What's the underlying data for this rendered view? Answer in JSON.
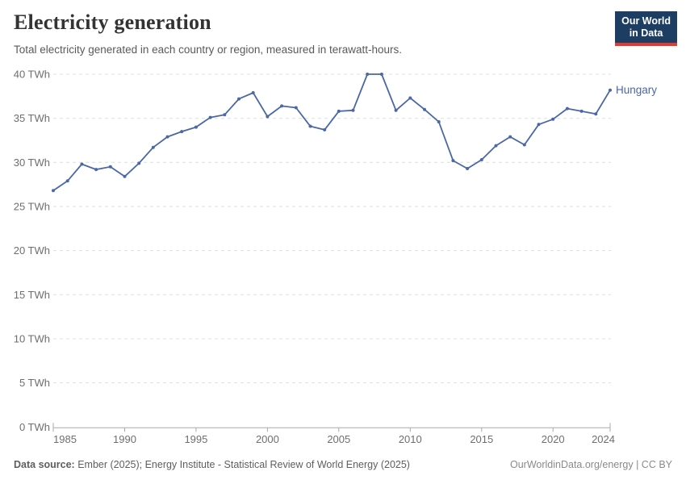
{
  "header": {
    "title": "Electricity generation",
    "subtitle": "Total electricity generated in each country or region, measured in terawatt-hours.",
    "logo": {
      "line1": "Our World",
      "line2": "in Data",
      "bg_color": "#1d3d63",
      "bar_color": "#dc3c34"
    }
  },
  "chart_data": {
    "type": "line",
    "title": "Electricity generation",
    "unit": "TWh",
    "grid": "horizontal-dashed",
    "legend_position": "end-of-line-label",
    "xlim": [
      1985,
      2024
    ],
    "ylim": [
      0,
      40
    ],
    "x": [
      1985,
      1986,
      1987,
      1988,
      1989,
      1990,
      1991,
      1992,
      1993,
      1994,
      1995,
      1996,
      1997,
      1998,
      1999,
      2000,
      2001,
      2002,
      2003,
      2004,
      2005,
      2006,
      2007,
      2008,
      2009,
      2010,
      2011,
      2012,
      2013,
      2014,
      2015,
      2016,
      2017,
      2018,
      2019,
      2020,
      2021,
      2022,
      2023,
      2024
    ],
    "series": [
      {
        "name": "Hungary",
        "color": "#4a67a6",
        "values": [
          26.8,
          27.9,
          29.8,
          29.2,
          29.5,
          28.4,
          29.9,
          31.7,
          32.9,
          33.5,
          34.0,
          35.1,
          35.4,
          37.2,
          37.9,
          35.2,
          36.4,
          36.2,
          34.1,
          33.7,
          35.8,
          35.9,
          40.0,
          40.0,
          35.9,
          37.3,
          36.0,
          34.6,
          30.2,
          29.3,
          30.3,
          31.9,
          32.9,
          32.0,
          34.3,
          34.9,
          36.1,
          35.8,
          35.5,
          38.2
        ]
      }
    ],
    "yticks": [
      {
        "v": 0,
        "label": "0 TWh"
      },
      {
        "v": 5,
        "label": "5 TWh"
      },
      {
        "v": 10,
        "label": "10 TWh"
      },
      {
        "v": 15,
        "label": "15 TWh"
      },
      {
        "v": 20,
        "label": "20 TWh"
      },
      {
        "v": 25,
        "label": "25 TWh"
      },
      {
        "v": 30,
        "label": "30 TWh"
      },
      {
        "v": 35,
        "label": "35 TWh"
      },
      {
        "v": 40,
        "label": "40 TWh"
      }
    ],
    "xticks": [
      {
        "v": 1985,
        "label": "1985"
      },
      {
        "v": 1990,
        "label": "1990"
      },
      {
        "v": 1995,
        "label": "1995"
      },
      {
        "v": 2000,
        "label": "2000"
      },
      {
        "v": 2005,
        "label": "2005"
      },
      {
        "v": 2010,
        "label": "2010"
      },
      {
        "v": 2015,
        "label": "2015"
      },
      {
        "v": 2020,
        "label": "2020"
      },
      {
        "v": 2024,
        "label": "2024"
      }
    ]
  },
  "footer": {
    "datasource_label": "Data source:",
    "datasource_text": " Ember (2025); Energy Institute - Statistical Review of World Energy (2025)",
    "link_text": "OurWorldinData.org/energy | CC BY"
  }
}
